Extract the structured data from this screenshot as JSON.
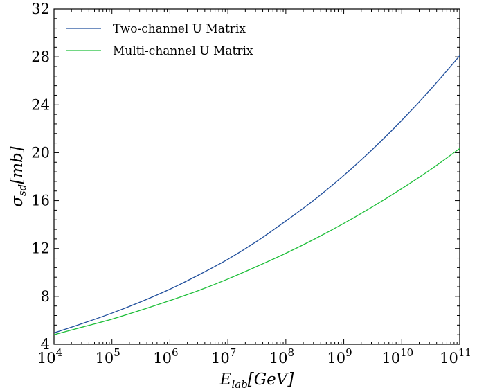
{
  "chart_data": {
    "type": "line",
    "title": "",
    "xlabel": {
      "main": "E",
      "sub": "lab",
      "unit": "[GeV]"
    },
    "ylabel": {
      "main": "σ",
      "sub": "sd",
      "unit": "[mb]"
    },
    "x_scale": "log",
    "xlim": [
      10000,
      100000000000
    ],
    "ylim": [
      4,
      32
    ],
    "x_ticks": [
      {
        "base": "10",
        "exp": "4",
        "value": 10000
      },
      {
        "base": "10",
        "exp": "5",
        "value": 100000
      },
      {
        "base": "10",
        "exp": "6",
        "value": 1000000
      },
      {
        "base": "10",
        "exp": "7",
        "value": 10000000
      },
      {
        "base": "10",
        "exp": "8",
        "value": 100000000
      },
      {
        "base": "10",
        "exp": "9",
        "value": 1000000000
      },
      {
        "base": "10",
        "exp": "10",
        "value": 10000000000
      },
      {
        "base": "10",
        "exp": "11",
        "value": 100000000000
      }
    ],
    "y_ticks": [
      "4",
      "8",
      "12",
      "16",
      "20",
      "24",
      "28",
      "32"
    ],
    "legend_position": "top-left",
    "x": [
      10000,
      31623,
      100000,
      316228,
      1000000,
      3162278,
      10000000,
      31622777,
      100000000,
      316227766,
      1000000000,
      3162277660,
      10000000000,
      31622776602,
      100000000000
    ],
    "series": [
      {
        "name": "Two-channel U Matrix",
        "color": "#1f4e9c",
        "values": [
          4.95,
          5.75,
          6.6,
          7.55,
          8.6,
          9.8,
          11.1,
          12.6,
          14.3,
          16.1,
          18.1,
          20.3,
          22.7,
          25.3,
          28.1
        ]
      },
      {
        "name": "Multi-channel U Matrix",
        "color": "#1fbf3a",
        "values": [
          4.8,
          5.45,
          6.1,
          6.85,
          7.65,
          8.5,
          9.45,
          10.5,
          11.6,
          12.8,
          14.1,
          15.5,
          17.0,
          18.6,
          20.35
        ]
      }
    ]
  }
}
